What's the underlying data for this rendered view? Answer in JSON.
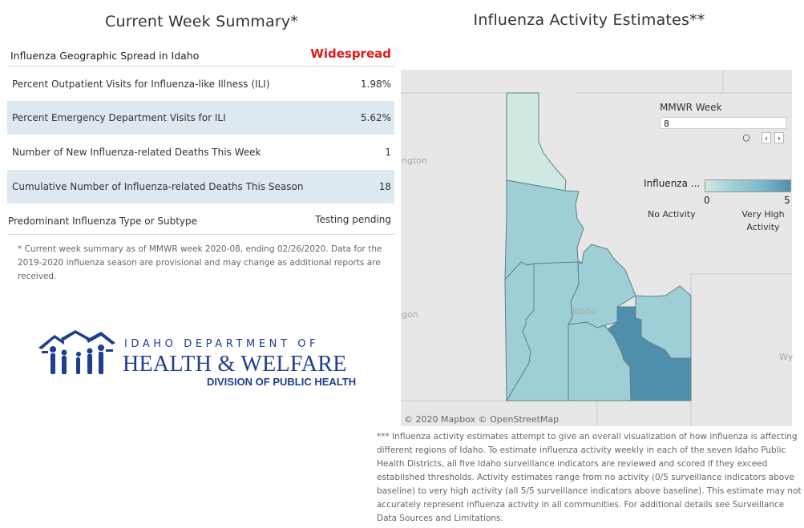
{
  "summary": {
    "title": "Current Week Summary*",
    "geo_label": "Influenza Geographic Spread in Idaho",
    "geo_value": "Widespread",
    "rows": [
      {
        "label": "Percent Outpatient Visits for Influenza-like Illness (ILI)",
        "value": "1.98%"
      },
      {
        "label": "Percent Emergency Department Visits for ILI",
        "value": "5.62%"
      },
      {
        "label": "Number of New Influenza-related Deaths This Week",
        "value": "1"
      },
      {
        "label": "Cumulative Number of Influenza-related Deaths This Season",
        "value": "18"
      }
    ],
    "predominant_label": "Predominant Influenza Type or Subtype",
    "predominant_value": "Testing pending",
    "footnote": "* Current week summary as of MMWR week 2020-08, ending 02/26/2020. Data for the 2019-2020 influenza season are provisional and may change as additional reports are received."
  },
  "logo": {
    "line1": "IDAHO DEPARTMENT OF",
    "line2": "HEALTH & WELFARE",
    "line3": "DIVISION OF PUBLIC HEALTH"
  },
  "map": {
    "title": "Influenza Activity Estimates**",
    "mmwr_label": "MMWR Week",
    "mmwr_value": "8",
    "legend_title": "Influenza ...",
    "legend_min": "0",
    "legend_max": "5",
    "legend_low": "No Activity",
    "legend_high": "Very High Activity",
    "places": {
      "washington": "ngton",
      "oregon": "gon",
      "idaho": "Idaho",
      "wyoming": "Wy"
    },
    "attribution": "© 2020 Mapbox  © OpenStreetMap",
    "colors": {
      "low": "#cfe9e2",
      "mid": "#9fcfd6",
      "high": "#7db9cb",
      "max": "#4f8fac"
    },
    "district_levels": [
      {
        "district": "1",
        "level": 1
      },
      {
        "district": "2",
        "level": 3
      },
      {
        "district": "3",
        "level": 3
      },
      {
        "district": "4",
        "level": 3
      },
      {
        "district": "5",
        "level": 3
      },
      {
        "district": "6",
        "level": 3
      },
      {
        "district": "7",
        "level": 4
      }
    ]
  },
  "disclaimer": "*** Influenza activity estimates attempt to give an overall visualization of how influenza is affecting different regions of Idaho. To estimate influenza activity weekly in each of the seven Idaho Public Health Districts, all five Idaho surveillance indicators are reviewed and scored if they exceed established thresholds. Activity estimates range from no activity (0/5 surveillance indicators above baseline) to very high activity (all 5/5 surveillance indicators above baseline). This estimate may not accurately represent influenza activity in all communities. For additional details see Surveillance Data Sources and Limitations."
}
